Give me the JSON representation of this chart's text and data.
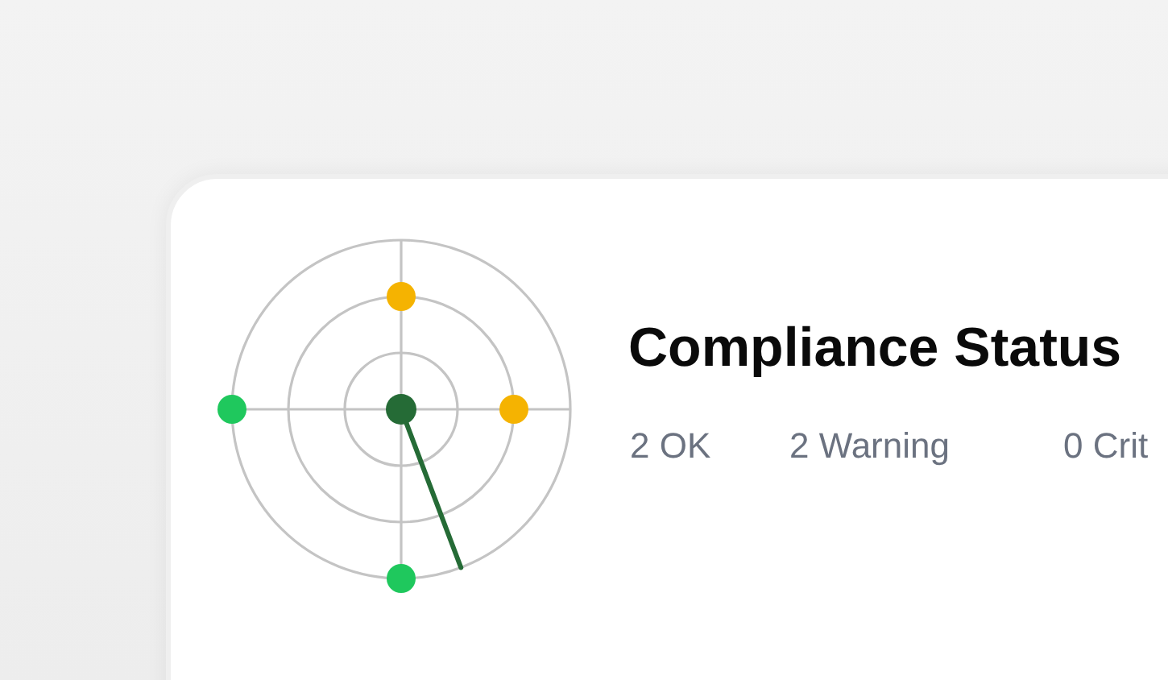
{
  "chart_data": {
    "type": "other",
    "title": "Compliance Status",
    "categories": [
      "OK",
      "Warning",
      "Crit"
    ],
    "values": [
      2,
      2,
      0
    ],
    "data_labels": true
  }
}
